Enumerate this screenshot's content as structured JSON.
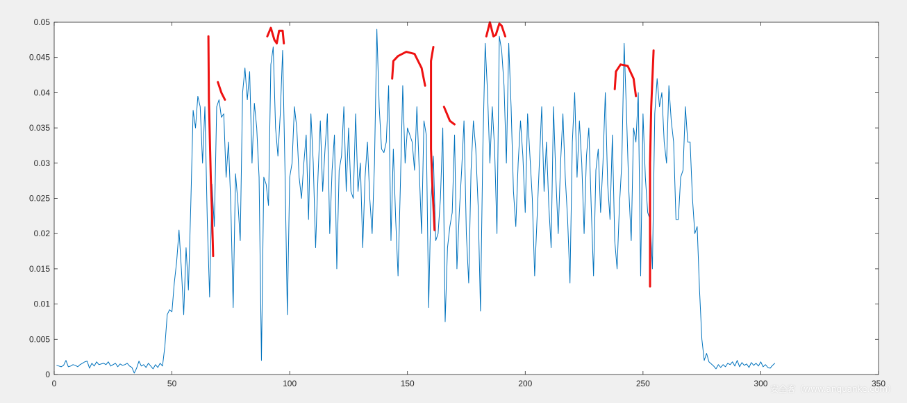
{
  "chart_data": {
    "type": "line",
    "title": "",
    "xlabel": "",
    "ylabel": "",
    "xlim": [
      0,
      350
    ],
    "ylim": [
      0,
      0.05
    ],
    "x_ticks": [
      0,
      50,
      100,
      150,
      200,
      250,
      300,
      350
    ],
    "y_ticks": [
      0,
      0.005,
      0.01,
      0.015,
      0.02,
      0.025,
      0.03,
      0.035,
      0.04,
      0.045,
      0.05
    ],
    "x_tick_labels": [
      "0",
      "50",
      "100",
      "150",
      "200",
      "250",
      "300",
      "350"
    ],
    "y_tick_labels": [
      "0",
      "0.005",
      "0.01",
      "0.015",
      "0.02",
      "0.025",
      "0.03",
      "0.035",
      "0.04",
      "0.045",
      "0.05"
    ],
    "grid": false,
    "series": [
      {
        "color": "#0072bd",
        "x_start": 1,
        "x_step": 1,
        "values": [
          0.0013,
          0.0012,
          0.0011,
          0.0013,
          0.002,
          0.0011,
          0.0012,
          0.0014,
          0.0013,
          0.0011,
          0.0014,
          0.0016,
          0.0018,
          0.0019,
          0.0009,
          0.0016,
          0.0012,
          0.0018,
          0.0014,
          0.0015,
          0.0016,
          0.0014,
          0.0018,
          0.0012,
          0.0014,
          0.0016,
          0.0011,
          0.0015,
          0.0013,
          0.0014,
          0.0016,
          0.0012,
          0.001,
          0.0002,
          0.0009,
          0.0019,
          0.0012,
          0.0014,
          0.001,
          0.0016,
          0.0012,
          0.0008,
          0.0014,
          0.001,
          0.0016,
          0.0012,
          0.004,
          0.0085,
          0.0092,
          0.0089,
          0.013,
          0.016,
          0.0205,
          0.015,
          0.0085,
          0.018,
          0.012,
          0.024,
          0.0375,
          0.035,
          0.0395,
          0.038,
          0.03,
          0.038,
          0.022,
          0.011,
          0.027,
          0.021,
          0.038,
          0.039,
          0.0365,
          0.037,
          0.028,
          0.033,
          0.024,
          0.0095,
          0.0285,
          0.0245,
          0.019,
          0.04,
          0.0435,
          0.039,
          0.043,
          0.03,
          0.0385,
          0.035,
          0.028,
          0.002,
          0.028,
          0.027,
          0.024,
          0.044,
          0.0465,
          0.035,
          0.031,
          0.037,
          0.046,
          0.029,
          0.0085,
          0.028,
          0.03,
          0.038,
          0.035,
          0.028,
          0.025,
          0.03,
          0.034,
          0.022,
          0.037,
          0.03,
          0.018,
          0.028,
          0.036,
          0.026,
          0.032,
          0.037,
          0.02,
          0.029,
          0.034,
          0.015,
          0.029,
          0.031,
          0.038,
          0.026,
          0.035,
          0.026,
          0.025,
          0.037,
          0.026,
          0.03,
          0.018,
          0.028,
          0.033,
          0.025,
          0.02,
          0.03,
          0.049,
          0.038,
          0.032,
          0.0315,
          0.033,
          0.041,
          0.019,
          0.032,
          0.022,
          0.014,
          0.027,
          0.041,
          0.03,
          0.035,
          0.034,
          0.033,
          0.029,
          0.038,
          0.029,
          0.02,
          0.036,
          0.034,
          0.0095,
          0.025,
          0.031,
          0.019,
          0.02,
          0.025,
          0.035,
          0.0075,
          0.018,
          0.021,
          0.023,
          0.034,
          0.015,
          0.023,
          0.029,
          0.036,
          0.02,
          0.013,
          0.029,
          0.036,
          0.032,
          0.024,
          0.009,
          0.032,
          0.047,
          0.04,
          0.03,
          0.038,
          0.032,
          0.02,
          0.048,
          0.046,
          0.041,
          0.03,
          0.047,
          0.038,
          0.026,
          0.021,
          0.03,
          0.036,
          0.031,
          0.023,
          0.037,
          0.031,
          0.025,
          0.014,
          0.022,
          0.03,
          0.038,
          0.026,
          0.033,
          0.024,
          0.018,
          0.038,
          0.028,
          0.02,
          0.03,
          0.037,
          0.028,
          0.022,
          0.013,
          0.033,
          0.04,
          0.028,
          0.036,
          0.03,
          0.02,
          0.031,
          0.035,
          0.024,
          0.014,
          0.029,
          0.032,
          0.023,
          0.03,
          0.04,
          0.027,
          0.022,
          0.034,
          0.019,
          0.015,
          0.024,
          0.03,
          0.047,
          0.037,
          0.026,
          0.019,
          0.035,
          0.033,
          0.04,
          0.014,
          0.037,
          0.028,
          0.023,
          0.022,
          0.015,
          0.037,
          0.042,
          0.038,
          0.04,
          0.033,
          0.03,
          0.041,
          0.036,
          0.033,
          0.022,
          0.022,
          0.028,
          0.029,
          0.038,
          0.033,
          0.033,
          0.025,
          0.02,
          0.021,
          0.012,
          0.005,
          0.002,
          0.003,
          0.0018,
          0.0015,
          0.0012,
          0.0008,
          0.0014,
          0.001,
          0.0014,
          0.0011,
          0.0016,
          0.0014,
          0.0018,
          0.0012,
          0.002,
          0.0011,
          0.0017,
          0.0013,
          0.0015,
          0.001,
          0.0017,
          0.0013,
          0.0016,
          0.0012,
          0.0018,
          0.0011,
          0.0014,
          0.001,
          0.0009,
          0.0013,
          0.0016
        ]
      }
    ],
    "annotations": [
      {
        "color": "#ee1111",
        "strokes": [
          [
            [
              65.5,
              0.048
            ],
            [
              65.7,
              0.039
            ],
            [
              66.5,
              0.028
            ],
            [
              67,
              0.023
            ],
            [
              67.5,
              0.0168
            ]
          ],
          [
            [
              69.5,
              0.0415
            ],
            [
              71,
              0.04
            ],
            [
              72.5,
              0.039
            ]
          ],
          [
            [
              90.5,
              0.048
            ],
            [
              92,
              0.0492
            ],
            [
              93.5,
              0.0475
            ],
            [
              94.5,
              0.047
            ],
            [
              95.5,
              0.0488
            ],
            [
              97,
              0.0488
            ],
            [
              97.5,
              0.047
            ]
          ],
          [
            [
              143.5,
              0.042
            ],
            [
              144,
              0.0445
            ],
            [
              146,
              0.0452
            ],
            [
              149.5,
              0.0458
            ],
            [
              153,
              0.0455
            ],
            [
              156,
              0.0435
            ],
            [
              157.5,
              0.041
            ]
          ],
          [
            [
              161,
              0.0465
            ],
            [
              160,
              0.0445
            ],
            [
              160,
              0.032
            ],
            [
              160.5,
              0.0275
            ],
            [
              161.5,
              0.0205
            ]
          ],
          [
            [
              165.5,
              0.038
            ],
            [
              168,
              0.036
            ],
            [
              170,
              0.0355
            ]
          ],
          [
            [
              183.5,
              0.048
            ],
            [
              185,
              0.05
            ],
            [
              186.5,
              0.048
            ],
            [
              187.5,
              0.0482
            ],
            [
              189,
              0.0498
            ],
            [
              190,
              0.0495
            ],
            [
              191.5,
              0.048
            ]
          ],
          [
            [
              238,
              0.0405
            ],
            [
              238.5,
              0.043
            ],
            [
              240.5,
              0.044
            ],
            [
              243.5,
              0.0438
            ],
            [
              246,
              0.042
            ],
            [
              247,
              0.0395
            ]
          ],
          [
            [
              254.5,
              0.046
            ],
            [
              253.5,
              0.038
            ],
            [
              253,
              0.03
            ],
            [
              253,
              0.0125
            ]
          ]
        ]
      }
    ]
  },
  "watermark": "安全客（www.anquanke.com）"
}
